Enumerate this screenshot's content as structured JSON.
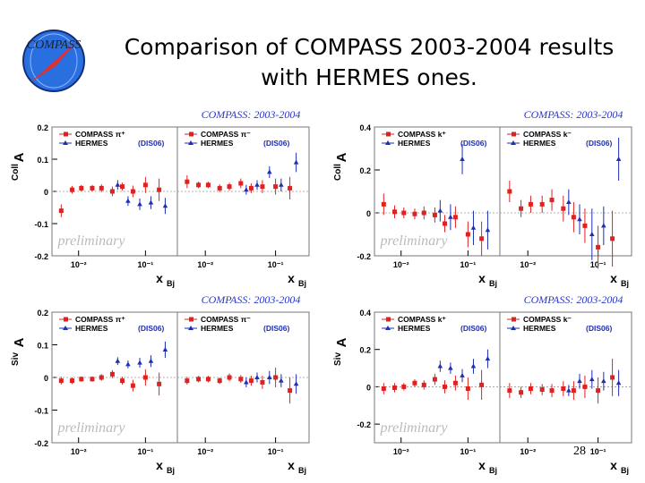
{
  "title_lines": [
    "Comparison of COMPASS 2003-2004 results",
    "with HERMES ones."
  ],
  "logo_text": "COMPASS",
  "slide_number": "28",
  "colors": {
    "compass": "#dd2222",
    "hermes": "#1e2fb0",
    "banner": "#2a38c8",
    "prelim": "#bbbbbb"
  },
  "chart_data": [
    {
      "type": "scatter",
      "id": "acoll-pi",
      "banner": "COMPASS: 2003-2004",
      "ylabel": "A",
      "ylabel_sub": "Coll",
      "xlabel": "x",
      "xlabel_sub": "Bj",
      "ylim": [
        -0.2,
        0.2
      ],
      "yticks": [
        {
          "v": 0.2,
          "t": "0.2"
        },
        {
          "v": 0.1,
          "t": "0.1"
        },
        {
          "v": 0,
          "t": "0"
        },
        {
          "v": -0.1,
          "t": "-0.1"
        },
        {
          "v": -0.2,
          "t": "-0.2"
        }
      ],
      "watermark": "preliminary",
      "subpanels": [
        {
          "legend": [
            {
              "name": "COMPASS π⁺",
              "note": ""
            },
            {
              "name": "HERMES",
              "note": "(DIS06)"
            }
          ],
          "x_ticks": [
            {
              "v": 0.01,
              "t": "10⁻²"
            },
            {
              "v": 0.1,
              "t": "10⁻¹"
            }
          ],
          "compass": [
            {
              "x": 0.0055,
              "y": -0.06,
              "e": 0.02
            },
            {
              "x": 0.008,
              "y": 0.005,
              "e": 0.012
            },
            {
              "x": 0.011,
              "y": 0.01,
              "e": 0.01
            },
            {
              "x": 0.016,
              "y": 0.01,
              "e": 0.01
            },
            {
              "x": 0.022,
              "y": 0.01,
              "e": 0.012
            },
            {
              "x": 0.032,
              "y": 0.0,
              "e": 0.015
            },
            {
              "x": 0.045,
              "y": 0.015,
              "e": 0.012
            },
            {
              "x": 0.065,
              "y": 0.0,
              "e": 0.018
            },
            {
              "x": 0.1,
              "y": 0.02,
              "e": 0.025
            },
            {
              "x": 0.16,
              "y": 0.005,
              "e": 0.035
            }
          ],
          "hermes": [
            {
              "x": 0.035,
              "y": 0.02,
              "e": 0.015
            },
            {
              "x": 0.05,
              "y": -0.03,
              "e": 0.015
            },
            {
              "x": 0.075,
              "y": -0.04,
              "e": 0.018
            },
            {
              "x": 0.11,
              "y": -0.035,
              "e": 0.02
            },
            {
              "x": 0.18,
              "y": -0.045,
              "e": 0.025
            }
          ]
        },
        {
          "legend": [
            {
              "name": "COMPASS π⁻",
              "note": ""
            },
            {
              "name": "HERMES",
              "note": "(DIS06)"
            }
          ],
          "x_ticks": [
            {
              "v": 0.01,
              "t": "10⁻²"
            },
            {
              "v": 0.1,
              "t": "10⁻¹"
            }
          ],
          "compass": [
            {
              "x": 0.0055,
              "y": 0.03,
              "e": 0.02
            },
            {
              "x": 0.008,
              "y": 0.02,
              "e": 0.01
            },
            {
              "x": 0.011,
              "y": 0.02,
              "e": 0.01
            },
            {
              "x": 0.016,
              "y": 0.01,
              "e": 0.012
            },
            {
              "x": 0.022,
              "y": 0.015,
              "e": 0.012
            },
            {
              "x": 0.032,
              "y": 0.025,
              "e": 0.015
            },
            {
              "x": 0.045,
              "y": 0.01,
              "e": 0.015
            },
            {
              "x": 0.065,
              "y": 0.015,
              "e": 0.02
            },
            {
              "x": 0.1,
              "y": 0.015,
              "e": 0.025
            },
            {
              "x": 0.16,
              "y": 0.01,
              "e": 0.035
            }
          ],
          "hermes": [
            {
              "x": 0.035,
              "y": 0.005,
              "e": 0.015
            },
            {
              "x": 0.05,
              "y": 0.02,
              "e": 0.015
            },
            {
              "x": 0.075,
              "y": 0.06,
              "e": 0.018
            },
            {
              "x": 0.11,
              "y": 0.02,
              "e": 0.02
            },
            {
              "x": 0.18,
              "y": 0.09,
              "e": 0.03
            }
          ]
        }
      ]
    },
    {
      "type": "scatter",
      "id": "acoll-k",
      "banner": "COMPASS: 2003-2004",
      "ylabel": "A",
      "ylabel_sub": "Coll",
      "xlabel": "x",
      "xlabel_sub": "Bj",
      "ylim": [
        -0.2,
        0.4
      ],
      "yticks": [
        {
          "v": 0.4,
          "t": "0.4"
        },
        {
          "v": 0.2,
          "t": "0.2"
        },
        {
          "v": 0,
          "t": "0"
        },
        {
          "v": -0.2,
          "t": "-0.2"
        }
      ],
      "watermark": "preliminary",
      "subpanels": [
        {
          "legend": [
            {
              "name": "COMPASS k⁺",
              "note": ""
            },
            {
              "name": "HERMES",
              "note": "(DIS06)"
            }
          ],
          "x_ticks": [
            {
              "v": 0.01,
              "t": "10⁻²"
            },
            {
              "v": 0.1,
              "t": "10⁻¹"
            }
          ],
          "compass": [
            {
              "x": 0.0055,
              "y": 0.04,
              "e": 0.05
            },
            {
              "x": 0.008,
              "y": 0.005,
              "e": 0.03
            },
            {
              "x": 0.011,
              "y": 0.0,
              "e": 0.025
            },
            {
              "x": 0.016,
              "y": -0.005,
              "e": 0.025
            },
            {
              "x": 0.022,
              "y": 0.0,
              "e": 0.03
            },
            {
              "x": 0.032,
              "y": -0.01,
              "e": 0.035
            },
            {
              "x": 0.045,
              "y": -0.05,
              "e": 0.04
            },
            {
              "x": 0.065,
              "y": -0.02,
              "e": 0.05
            },
            {
              "x": 0.1,
              "y": -0.1,
              "e": 0.06
            },
            {
              "x": 0.16,
              "y": -0.12,
              "e": 0.08
            }
          ],
          "hermes": [
            {
              "x": 0.035,
              "y": 0.01,
              "e": 0.05
            },
            {
              "x": 0.05,
              "y": -0.02,
              "e": 0.06
            },
            {
              "x": 0.075,
              "y": 0.25,
              "e": 0.07
            },
            {
              "x": 0.11,
              "y": -0.07,
              "e": 0.08
            },
            {
              "x": 0.18,
              "y": -0.08,
              "e": 0.09
            }
          ]
        },
        {
          "legend": [
            {
              "name": "COMPASS k⁻",
              "note": ""
            },
            {
              "name": "HERMES",
              "note": "(DIS06)"
            }
          ],
          "x_ticks": [
            {
              "v": 0.01,
              "t": "10⁻²"
            },
            {
              "v": 0.1,
              "t": "10⁻¹"
            }
          ],
          "compass": [
            {
              "x": 0.0055,
              "y": 0.1,
              "e": 0.05
            },
            {
              "x": 0.008,
              "y": 0.02,
              "e": 0.04
            },
            {
              "x": 0.011,
              "y": 0.04,
              "e": 0.04
            },
            {
              "x": 0.016,
              "y": 0.04,
              "e": 0.04
            },
            {
              "x": 0.022,
              "y": 0.06,
              "e": 0.05
            },
            {
              "x": 0.032,
              "y": 0.02,
              "e": 0.06
            },
            {
              "x": 0.045,
              "y": -0.02,
              "e": 0.07
            },
            {
              "x": 0.065,
              "y": -0.06,
              "e": 0.08
            },
            {
              "x": 0.1,
              "y": -0.16,
              "e": 0.1
            },
            {
              "x": 0.16,
              "y": -0.12,
              "e": 0.13
            }
          ],
          "hermes": [
            {
              "x": 0.035,
              "y": 0.05,
              "e": 0.06
            },
            {
              "x": 0.05,
              "y": -0.03,
              "e": 0.07
            },
            {
              "x": 0.075,
              "y": -0.1,
              "e": 0.12
            },
            {
              "x": 0.11,
              "y": -0.06,
              "e": 0.09
            },
            {
              "x": 0.18,
              "y": 0.25,
              "e": 0.1
            }
          ]
        }
      ]
    },
    {
      "type": "scatter",
      "id": "asiv-pi",
      "banner": "COMPASS: 2003-2004",
      "ylabel": "A",
      "ylabel_sub": "Siv",
      "xlabel": "x",
      "xlabel_sub": "Bj",
      "ylim": [
        -0.2,
        0.2
      ],
      "yticks": [
        {
          "v": 0.2,
          "t": "0.2"
        },
        {
          "v": 0.1,
          "t": "0.1"
        },
        {
          "v": 0,
          "t": "0"
        },
        {
          "v": -0.1,
          "t": "-0.1"
        },
        {
          "v": -0.2,
          "t": "-0.2"
        }
      ],
      "watermark": "preliminary",
      "subpanels": [
        {
          "legend": [
            {
              "name": "COMPASS π⁺",
              "note": ""
            },
            {
              "name": "HERMES",
              "note": "(DIS06)"
            }
          ],
          "x_ticks": [
            {
              "v": 0.01,
              "t": "10⁻²"
            },
            {
              "v": 0.1,
              "t": "10⁻¹"
            }
          ],
          "compass": [
            {
              "x": 0.0055,
              "y": -0.01,
              "e": 0.012
            },
            {
              "x": 0.008,
              "y": -0.01,
              "e": 0.01
            },
            {
              "x": 0.011,
              "y": -0.005,
              "e": 0.008
            },
            {
              "x": 0.016,
              "y": -0.005,
              "e": 0.008
            },
            {
              "x": 0.022,
              "y": 0.0,
              "e": 0.01
            },
            {
              "x": 0.032,
              "y": 0.01,
              "e": 0.012
            },
            {
              "x": 0.045,
              "y": -0.01,
              "e": 0.012
            },
            {
              "x": 0.065,
              "y": -0.025,
              "e": 0.018
            },
            {
              "x": 0.1,
              "y": 0.0,
              "e": 0.025
            },
            {
              "x": 0.16,
              "y": -0.02,
              "e": 0.035
            }
          ],
          "hermes": [
            {
              "x": 0.035,
              "y": 0.05,
              "e": 0.012
            },
            {
              "x": 0.05,
              "y": 0.04,
              "e": 0.012
            },
            {
              "x": 0.075,
              "y": 0.045,
              "e": 0.015
            },
            {
              "x": 0.11,
              "y": 0.05,
              "e": 0.018
            },
            {
              "x": 0.18,
              "y": 0.085,
              "e": 0.025
            }
          ]
        },
        {
          "legend": [
            {
              "name": "COMPASS π⁻",
              "note": ""
            },
            {
              "name": "HERMES",
              "note": "(DIS06)"
            }
          ],
          "x_ticks": [
            {
              "v": 0.01,
              "t": "10⁻²"
            },
            {
              "v": 0.1,
              "t": "10⁻¹"
            }
          ],
          "compass": [
            {
              "x": 0.0055,
              "y": -0.01,
              "e": 0.012
            },
            {
              "x": 0.008,
              "y": -0.005,
              "e": 0.01
            },
            {
              "x": 0.011,
              "y": -0.005,
              "e": 0.01
            },
            {
              "x": 0.016,
              "y": -0.01,
              "e": 0.01
            },
            {
              "x": 0.022,
              "y": 0.0,
              "e": 0.012
            },
            {
              "x": 0.032,
              "y": -0.005,
              "e": 0.012
            },
            {
              "x": 0.045,
              "y": -0.01,
              "e": 0.015
            },
            {
              "x": 0.065,
              "y": -0.015,
              "e": 0.02
            },
            {
              "x": 0.1,
              "y": 0.0,
              "e": 0.03
            },
            {
              "x": 0.16,
              "y": -0.04,
              "e": 0.04
            }
          ],
          "hermes": [
            {
              "x": 0.035,
              "y": -0.015,
              "e": 0.015
            },
            {
              "x": 0.05,
              "y": 0.0,
              "e": 0.015
            },
            {
              "x": 0.075,
              "y": 0.0,
              "e": 0.02
            },
            {
              "x": 0.11,
              "y": -0.01,
              "e": 0.02
            },
            {
              "x": 0.18,
              "y": -0.02,
              "e": 0.03
            }
          ]
        }
      ]
    },
    {
      "type": "scatter",
      "id": "asiv-k",
      "banner": "COMPASS: 2003-2004",
      "ylabel": "A",
      "ylabel_sub": "Siv",
      "xlabel": "x",
      "xlabel_sub": "Bj",
      "ylim": [
        -0.3,
        0.4
      ],
      "yticks": [
        {
          "v": 0.4,
          "t": "0.4"
        },
        {
          "v": 0.2,
          "t": "0.2"
        },
        {
          "v": 0,
          "t": "0"
        },
        {
          "v": -0.2,
          "t": "-0.2"
        }
      ],
      "watermark": "preliminary",
      "subpanels": [
        {
          "legend": [
            {
              "name": "COMPASS k⁺",
              "note": ""
            },
            {
              "name": "HERMES",
              "note": "(DIS06)"
            }
          ],
          "x_ticks": [
            {
              "v": 0.01,
              "t": "10⁻²"
            },
            {
              "v": 0.1,
              "t": "10⁻¹"
            }
          ],
          "compass": [
            {
              "x": 0.0055,
              "y": -0.01,
              "e": 0.03
            },
            {
              "x": 0.008,
              "y": -0.005,
              "e": 0.025
            },
            {
              "x": 0.011,
              "y": 0.0,
              "e": 0.02
            },
            {
              "x": 0.016,
              "y": 0.02,
              "e": 0.02
            },
            {
              "x": 0.022,
              "y": 0.01,
              "e": 0.025
            },
            {
              "x": 0.032,
              "y": 0.04,
              "e": 0.03
            },
            {
              "x": 0.045,
              "y": 0.0,
              "e": 0.035
            },
            {
              "x": 0.065,
              "y": 0.02,
              "e": 0.04
            },
            {
              "x": 0.1,
              "y": -0.01,
              "e": 0.06
            },
            {
              "x": 0.16,
              "y": 0.01,
              "e": 0.08
            }
          ],
          "hermes": [
            {
              "x": 0.035,
              "y": 0.11,
              "e": 0.03
            },
            {
              "x": 0.05,
              "y": 0.1,
              "e": 0.03
            },
            {
              "x": 0.075,
              "y": 0.06,
              "e": 0.035
            },
            {
              "x": 0.11,
              "y": 0.11,
              "e": 0.04
            },
            {
              "x": 0.18,
              "y": 0.15,
              "e": 0.05
            }
          ]
        },
        {
          "legend": [
            {
              "name": "COMPASS k⁻",
              "note": ""
            },
            {
              "name": "HERMES",
              "note": "(DIS06)"
            }
          ],
          "x_ticks": [
            {
              "v": 0.01,
              "t": "10⁻²"
            },
            {
              "v": 0.1,
              "t": "10⁻¹"
            }
          ],
          "compass": [
            {
              "x": 0.0055,
              "y": -0.02,
              "e": 0.04
            },
            {
              "x": 0.008,
              "y": -0.03,
              "e": 0.03
            },
            {
              "x": 0.011,
              "y": -0.01,
              "e": 0.03
            },
            {
              "x": 0.016,
              "y": -0.015,
              "e": 0.03
            },
            {
              "x": 0.022,
              "y": -0.02,
              "e": 0.035
            },
            {
              "x": 0.032,
              "y": -0.01,
              "e": 0.04
            },
            {
              "x": 0.045,
              "y": -0.02,
              "e": 0.05
            },
            {
              "x": 0.065,
              "y": 0.0,
              "e": 0.06
            },
            {
              "x": 0.1,
              "y": -0.02,
              "e": 0.07
            },
            {
              "x": 0.16,
              "y": 0.05,
              "e": 0.1
            }
          ],
          "hermes": [
            {
              "x": 0.035,
              "y": -0.02,
              "e": 0.03
            },
            {
              "x": 0.05,
              "y": 0.03,
              "e": 0.04
            },
            {
              "x": 0.075,
              "y": 0.04,
              "e": 0.05
            },
            {
              "x": 0.11,
              "y": 0.03,
              "e": 0.05
            },
            {
              "x": 0.18,
              "y": 0.02,
              "e": 0.07
            }
          ]
        }
      ]
    }
  ]
}
